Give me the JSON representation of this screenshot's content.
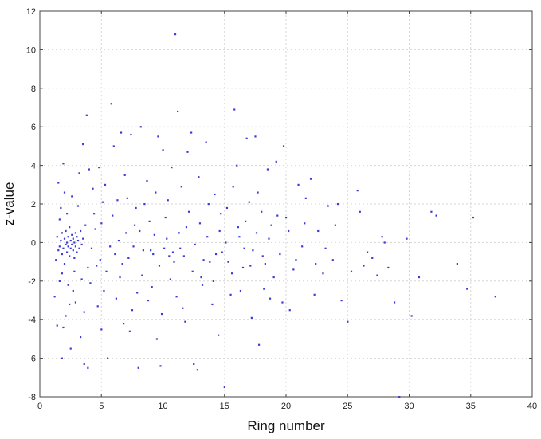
{
  "chart_data": {
    "type": "scatter",
    "title": "",
    "xlabel": "Ring number",
    "ylabel": "z-value",
    "xlim": [
      0,
      40
    ],
    "ylim": [
      -8,
      12
    ],
    "xticks": [
      0,
      5,
      10,
      15,
      20,
      25,
      30,
      35,
      40
    ],
    "yticks": [
      -8,
      -6,
      -4,
      -2,
      0,
      2,
      4,
      6,
      8,
      10,
      12
    ],
    "grid": true,
    "marker_color": "#3b3bd6",
    "series": [
      {
        "points": [
          [
            1.2,
            -2.8
          ],
          [
            1.3,
            -0.9
          ],
          [
            1.4,
            0.3
          ],
          [
            1.5,
            -0.4
          ],
          [
            1.6,
            1.2
          ],
          [
            1.6,
            -0.2
          ],
          [
            1.7,
            0.1
          ],
          [
            1.8,
            0.5
          ],
          [
            1.8,
            -0.6
          ],
          [
            1.9,
            -0.3
          ],
          [
            2.0,
            0.2
          ],
          [
            2.0,
            -1.1
          ],
          [
            2.1,
            0.6
          ],
          [
            2.1,
            -0.1
          ],
          [
            2.2,
            0.0
          ],
          [
            2.2,
            -0.5
          ],
          [
            2.3,
            0.3
          ],
          [
            2.3,
            -0.2
          ],
          [
            2.4,
            0.8
          ],
          [
            2.4,
            -0.7
          ],
          [
            2.5,
            0.1
          ],
          [
            2.5,
            -0.3
          ],
          [
            2.6,
            0.4
          ],
          [
            2.6,
            -0.1
          ],
          [
            2.7,
            0.2
          ],
          [
            2.7,
            -0.4
          ],
          [
            2.8,
            0.0
          ],
          [
            2.8,
            -0.8
          ],
          [
            2.9,
            0.5
          ],
          [
            2.9,
            -0.2
          ],
          [
            3.0,
            0.3
          ],
          [
            3.0,
            -0.5
          ],
          [
            3.1,
            0.1
          ],
          [
            3.2,
            -0.3
          ],
          [
            3.3,
            0.6
          ],
          [
            3.4,
            -0.1
          ],
          [
            3.5,
            0.2
          ],
          [
            1.7,
            1.8
          ],
          [
            1.8,
            -1.6
          ],
          [
            2.2,
            1.5
          ],
          [
            2.0,
            2.6
          ],
          [
            1.5,
            3.1
          ],
          [
            1.6,
            -2.0
          ],
          [
            2.3,
            -2.2
          ],
          [
            2.8,
            -1.5
          ],
          [
            1.9,
            -4.4
          ],
          [
            1.8,
            -6.0
          ],
          [
            2.5,
            -5.5
          ],
          [
            2.9,
            -3.1
          ],
          [
            3.3,
            -4.9
          ],
          [
            3.6,
            -6.3
          ],
          [
            3.9,
            -6.5
          ],
          [
            3.5,
            5.1
          ],
          [
            3.8,
            6.6
          ],
          [
            4.0,
            3.8
          ],
          [
            4.2,
            -0.3
          ],
          [
            4.4,
            1.5
          ],
          [
            4.6,
            -1.2
          ],
          [
            4.8,
            3.9
          ],
          [
            5.0,
            1.0
          ],
          [
            5.2,
            -2.5
          ],
          [
            5.0,
            -4.5
          ],
          [
            5.5,
            -6.0
          ],
          [
            5.8,
            7.2
          ],
          [
            6.0,
            5.0
          ],
          [
            6.3,
            2.2
          ],
          [
            6.5,
            -1.8
          ],
          [
            6.6,
            5.7
          ],
          [
            6.8,
            -4.2
          ],
          [
            7.0,
            0.5
          ],
          [
            7.2,
            -0.8
          ],
          [
            7.4,
            5.6
          ],
          [
            7.5,
            -3.5
          ],
          [
            7.8,
            1.8
          ],
          [
            8.0,
            -6.5
          ],
          [
            8.2,
            6.0
          ],
          [
            8.5,
            2.0
          ],
          [
            8.8,
            -3.0
          ],
          [
            9.0,
            -0.4
          ],
          [
            9.2,
            -0.6
          ],
          [
            9.5,
            -5.0
          ],
          [
            9.6,
            5.5
          ],
          [
            9.8,
            -6.4
          ],
          [
            10.0,
            4.8
          ],
          [
            10.2,
            1.3
          ],
          [
            10.5,
            -0.7
          ],
          [
            10.6,
            -1.9
          ],
          [
            10.8,
            -0.5
          ],
          [
            11.0,
            10.8
          ],
          [
            11.2,
            6.8
          ],
          [
            11.4,
            -0.3
          ],
          [
            11.6,
            -3.4
          ],
          [
            11.8,
            -4.1
          ],
          [
            12.0,
            4.7
          ],
          [
            12.3,
            5.7
          ],
          [
            12.5,
            -6.3
          ],
          [
            12.8,
            -6.6
          ],
          [
            13.0,
            1.0
          ],
          [
            13.2,
            -2.2
          ],
          [
            13.5,
            5.2
          ],
          [
            13.8,
            -1.0
          ],
          [
            14.0,
            -3.2
          ],
          [
            14.2,
            2.5
          ],
          [
            14.5,
            -4.8
          ],
          [
            14.8,
            -0.5
          ],
          [
            15.0,
            -7.5
          ],
          [
            15.2,
            1.8
          ],
          [
            15.5,
            -2.7
          ],
          [
            15.8,
            6.9
          ],
          [
            16.0,
            4.0
          ],
          [
            16.2,
            0.3
          ],
          [
            16.5,
            -1.3
          ],
          [
            16.8,
            5.4
          ],
          [
            17.0,
            2.1
          ],
          [
            17.2,
            -3.9
          ],
          [
            17.5,
            5.5
          ],
          [
            17.8,
            -5.3
          ],
          [
            18.0,
            1.6
          ],
          [
            18.2,
            -2.4
          ],
          [
            18.5,
            3.8
          ],
          [
            18.8,
            0.9
          ],
          [
            19.0,
            -1.8
          ],
          [
            19.2,
            4.2
          ],
          [
            19.5,
            -0.6
          ],
          [
            19.8,
            5.0
          ],
          [
            20.0,
            1.3
          ],
          [
            20.3,
            -3.5
          ],
          [
            20.6,
            -1.4
          ],
          [
            21.0,
            3.0
          ],
          [
            21.3,
            -0.2
          ],
          [
            21.6,
            2.3
          ],
          [
            22.0,
            3.3
          ],
          [
            22.3,
            -2.7
          ],
          [
            22.6,
            0.6
          ],
          [
            23.0,
            -1.6
          ],
          [
            23.4,
            1.9
          ],
          [
            23.8,
            -0.9
          ],
          [
            24.2,
            2.0
          ],
          [
            24.5,
            -3.0
          ],
          [
            25.0,
            -4.1
          ],
          [
            25.3,
            -1.5
          ],
          [
            25.8,
            2.7
          ],
          [
            26.0,
            1.6
          ],
          [
            26.3,
            -1.2
          ],
          [
            26.6,
            -0.5
          ],
          [
            27.0,
            -0.8
          ],
          [
            27.4,
            -1.7
          ],
          [
            27.8,
            0.3
          ],
          [
            28.0,
            0.0
          ],
          [
            28.3,
            -1.3
          ],
          [
            28.8,
            -3.1
          ],
          [
            29.2,
            -8.0
          ],
          [
            29.8,
            0.2
          ],
          [
            30.2,
            -3.8
          ],
          [
            30.8,
            -1.8
          ],
          [
            31.8,
            1.6
          ],
          [
            32.2,
            1.4
          ],
          [
            33.9,
            -1.1
          ],
          [
            34.7,
            -2.4
          ],
          [
            35.2,
            1.3
          ],
          [
            37.0,
            -2.8
          ],
          [
            4.3,
            2.8
          ],
          [
            4.7,
            -3.3
          ],
          [
            5.3,
            3.0
          ],
          [
            5.7,
            -0.2
          ],
          [
            6.2,
            -2.9
          ],
          [
            6.9,
            3.5
          ],
          [
            7.3,
            -4.6
          ],
          [
            7.7,
            0.9
          ],
          [
            8.3,
            -1.7
          ],
          [
            8.7,
            3.2
          ],
          [
            9.1,
            -2.3
          ],
          [
            9.4,
            2.6
          ],
          [
            9.9,
            -3.7
          ],
          [
            10.3,
            0.2
          ],
          [
            10.7,
            3.9
          ],
          [
            11.1,
            -2.8
          ],
          [
            11.5,
            2.9
          ],
          [
            11.9,
            0.8
          ],
          [
            12.4,
            -1.5
          ],
          [
            12.9,
            3.4
          ],
          [
            13.3,
            -0.9
          ],
          [
            13.7,
            2.0
          ],
          [
            14.1,
            -2.0
          ],
          [
            14.6,
            0.6
          ],
          [
            15.3,
            -1.0
          ],
          [
            15.7,
            2.9
          ],
          [
            16.3,
            -2.5
          ],
          [
            16.7,
            1.1
          ],
          [
            17.3,
            -0.4
          ],
          [
            17.7,
            2.6
          ],
          [
            18.3,
            -1.1
          ],
          [
            18.7,
            -2.9
          ],
          [
            19.3,
            1.4
          ],
          [
            19.7,
            -3.1
          ],
          [
            20.2,
            0.6
          ],
          [
            20.8,
            -0.9
          ],
          [
            21.5,
            1.0
          ],
          [
            22.4,
            -1.1
          ],
          [
            23.2,
            -0.3
          ],
          [
            24.0,
            0.9
          ],
          [
            3.1,
            1.9
          ],
          [
            3.4,
            -1.9
          ],
          [
            3.7,
            0.9
          ],
          [
            3.9,
            -1.3
          ],
          [
            4.1,
            -2.1
          ],
          [
            4.5,
            0.7
          ],
          [
            4.9,
            -0.9
          ],
          [
            5.1,
            2.1
          ],
          [
            5.4,
            -1.5
          ],
          [
            5.9,
            1.4
          ],
          [
            6.1,
            -0.6
          ],
          [
            6.4,
            0.1
          ],
          [
            6.7,
            -1.1
          ],
          [
            7.1,
            2.3
          ],
          [
            7.6,
            -0.2
          ],
          [
            7.9,
            -2.6
          ],
          [
            8.1,
            0.6
          ],
          [
            8.4,
            -0.4
          ],
          [
            8.9,
            1.1
          ],
          [
            9.3,
            0.4
          ],
          [
            9.7,
            -1.2
          ],
          [
            10.1,
            -0.3
          ],
          [
            10.4,
            2.2
          ],
          [
            10.9,
            -1.0
          ],
          [
            11.3,
            0.5
          ],
          [
            11.7,
            -0.7
          ],
          [
            12.1,
            1.6
          ],
          [
            12.6,
            -0.1
          ],
          [
            13.1,
            -1.8
          ],
          [
            13.6,
            0.3
          ],
          [
            14.3,
            -0.6
          ],
          [
            14.7,
            1.5
          ],
          [
            15.1,
            0.0
          ],
          [
            15.6,
            -1.6
          ],
          [
            16.1,
            0.8
          ],
          [
            16.6,
            -0.3
          ],
          [
            17.1,
            -1.2
          ],
          [
            17.6,
            0.5
          ],
          [
            18.1,
            -0.7
          ],
          [
            18.6,
            0.2
          ],
          [
            2.4,
            -3.2
          ],
          [
            2.6,
            2.4
          ],
          [
            2.7,
            -2.5
          ],
          [
            3.2,
            3.6
          ],
          [
            3.6,
            -3.6
          ],
          [
            1.4,
            -4.3
          ],
          [
            1.9,
            4.1
          ],
          [
            2.1,
            -3.8
          ]
        ]
      }
    ]
  }
}
